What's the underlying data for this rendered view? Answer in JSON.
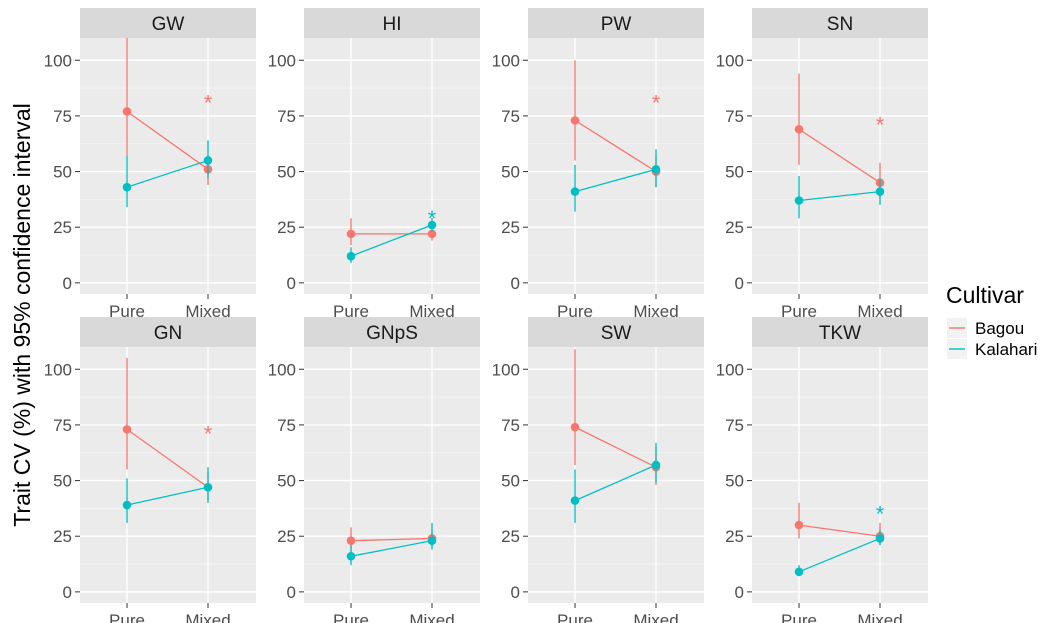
{
  "chart_data": {
    "type": "line",
    "facet_layout": "2 rows x 4 columns",
    "categories": [
      "Pure",
      "Mixed"
    ],
    "ylabel": "Trait CV (%) with 95% confidence interval",
    "xlabel": "",
    "ylim": [
      -5,
      110
    ],
    "yticks": [
      0,
      25,
      50,
      75,
      100
    ],
    "grid": true,
    "legend": {
      "title": "Cultivar",
      "position": "right",
      "entries": [
        {
          "name": "Bagou",
          "color": "#F8766D"
        },
        {
          "name": "Kalahari",
          "color": "#00BFC4"
        }
      ]
    },
    "significance_mark": "*",
    "panels": [
      {
        "title": "GW",
        "series": [
          {
            "name": "Bagou",
            "values": [
              77,
              51
            ],
            "lower": [
              57,
              44
            ],
            "upper": [
              110,
              58
            ]
          },
          {
            "name": "Kalahari",
            "values": [
              43,
              55
            ],
            "lower": [
              34,
              47
            ],
            "upper": [
              57,
              64
            ]
          }
        ],
        "significance": {
          "series": "Bagou",
          "y": 82
        }
      },
      {
        "title": "HI",
        "series": [
          {
            "name": "Bagou",
            "values": [
              22,
              22
            ],
            "lower": [
              17,
              19
            ],
            "upper": [
              29,
              25
            ]
          },
          {
            "name": "Kalahari",
            "values": [
              12,
              26
            ],
            "lower": [
              9,
              23
            ],
            "upper": [
              16,
              29
            ]
          }
        ],
        "significance": {
          "series": "Kalahari",
          "y": 30
        }
      },
      {
        "title": "PW",
        "series": [
          {
            "name": "Bagou",
            "values": [
              73,
              50
            ],
            "lower": [
              55,
              43
            ],
            "upper": [
              100,
              57
            ]
          },
          {
            "name": "Kalahari",
            "values": [
              41,
              51
            ],
            "lower": [
              32,
              43
            ],
            "upper": [
              53,
              60
            ]
          }
        ],
        "significance": {
          "series": "Bagou",
          "y": 82
        }
      },
      {
        "title": "SN",
        "series": [
          {
            "name": "Bagou",
            "values": [
              69,
              45
            ],
            "lower": [
              53,
              38
            ],
            "upper": [
              94,
              54
            ]
          },
          {
            "name": "Kalahari",
            "values": [
              37,
              41
            ],
            "lower": [
              29,
              35
            ],
            "upper": [
              48,
              47
            ]
          }
        ],
        "significance": {
          "series": "Bagou",
          "y": 72
        }
      },
      {
        "title": "GN",
        "series": [
          {
            "name": "Bagou",
            "values": [
              73,
              47
            ],
            "lower": [
              55,
              41
            ],
            "upper": [
              105,
              54
            ]
          },
          {
            "name": "Kalahari",
            "values": [
              39,
              47
            ],
            "lower": [
              31,
              40
            ],
            "upper": [
              51,
              56
            ]
          }
        ],
        "significance": {
          "series": "Bagou",
          "y": 72
        }
      },
      {
        "title": "GNpS",
        "series": [
          {
            "name": "Bagou",
            "values": [
              23,
              24
            ],
            "lower": [
              18,
              20
            ],
            "upper": [
              29,
              28
            ]
          },
          {
            "name": "Kalahari",
            "values": [
              16,
              23
            ],
            "lower": [
              12,
              19
            ],
            "upper": [
              21,
              31
            ]
          }
        ],
        "significance": null
      },
      {
        "title": "SW",
        "series": [
          {
            "name": "Bagou",
            "values": [
              74,
              56
            ],
            "lower": [
              57,
              48
            ],
            "upper": [
              109,
              65
            ]
          },
          {
            "name": "Kalahari",
            "values": [
              41,
              57
            ],
            "lower": [
              31,
              49
            ],
            "upper": [
              55,
              67
            ]
          }
        ],
        "significance": null
      },
      {
        "title": "TKW",
        "series": [
          {
            "name": "Bagou",
            "values": [
              30,
              25
            ],
            "lower": [
              24,
              21
            ],
            "upper": [
              40,
              31
            ]
          },
          {
            "name": "Kalahari",
            "values": [
              9,
              24
            ],
            "lower": [
              7,
              21
            ],
            "upper": [
              12,
              28
            ]
          }
        ],
        "significance": {
          "series": "Kalahari",
          "y": 36
        }
      }
    ]
  }
}
